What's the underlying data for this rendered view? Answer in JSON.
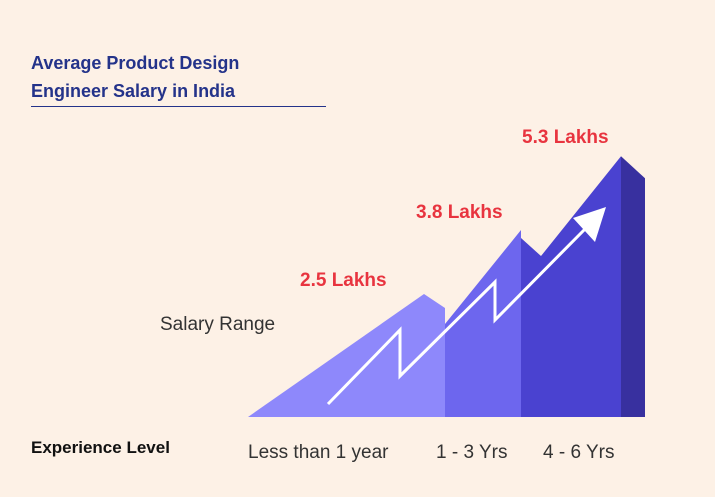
{
  "title_lines": [
    "Average Product Design",
    "Engineer Salary in India"
  ],
  "chart_data": {
    "type": "bar",
    "title": "Average Product Design Engineer Salary in India",
    "xlabel": "Experience Level",
    "ylabel": "Salary Range",
    "categories": [
      "Less than 1 year",
      "1 - 3 Yrs",
      "4 - 6 Yrs"
    ],
    "values": [
      2.5,
      3.8,
      5.3
    ],
    "value_labels": [
      "2.5 Lakhs",
      "3.8 Lakhs",
      "5.3 Lakhs"
    ],
    "unit": "Lakhs",
    "grid": false,
    "legend": "none"
  },
  "colors": {
    "background": "#fdf1e6",
    "title": "#24338a",
    "value_label": "#e8343f",
    "bars": [
      "#8e88fb",
      "#6d66ee",
      "#4a42d0"
    ],
    "bar_side": "#38309f",
    "arrow": "#ffffff"
  }
}
